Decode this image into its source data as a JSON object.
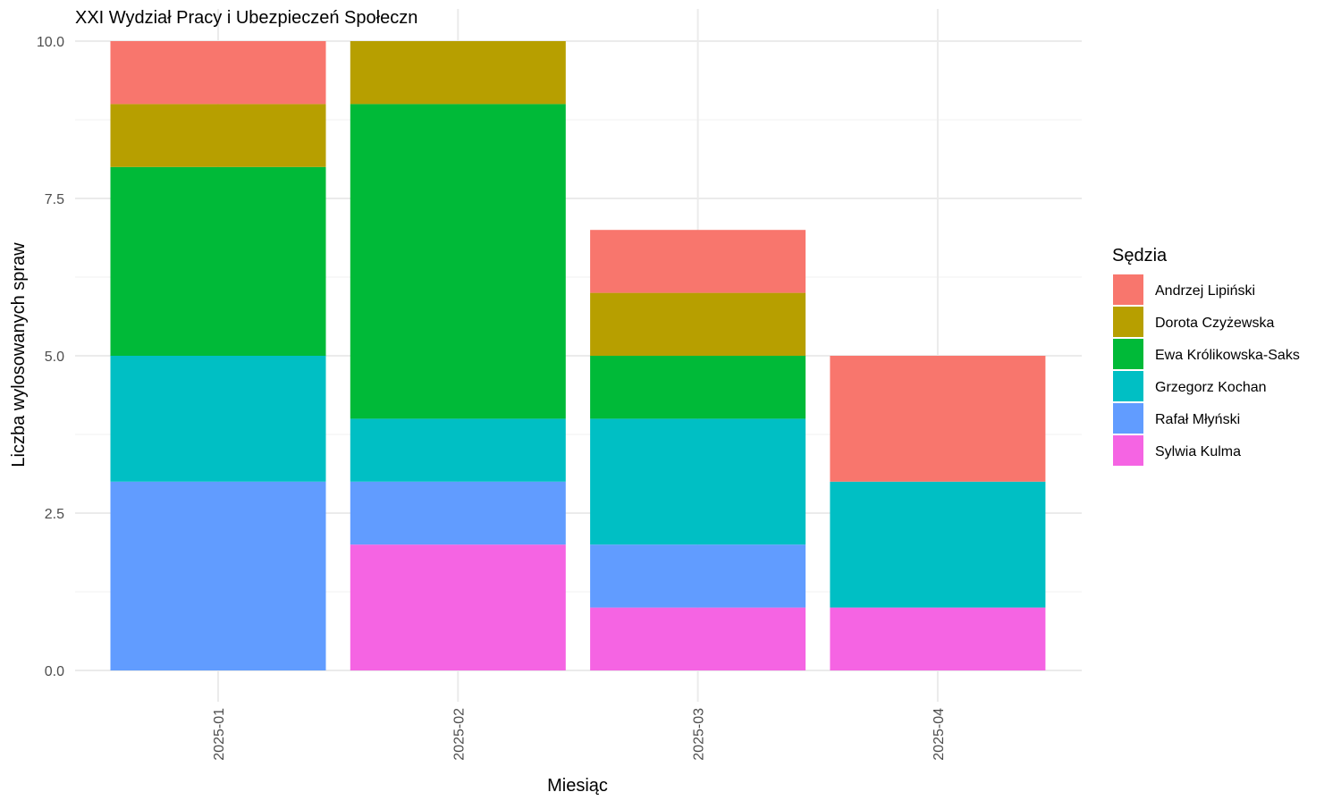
{
  "chart_data": {
    "type": "bar",
    "stacked": true,
    "title": "XXI Wydział Pracy i Ubezpieczeń Społeczn",
    "xlabel": "Miesiąc",
    "ylabel": "Liczba wylosowanych spraw",
    "ylim": [
      0,
      10.5
    ],
    "yticks": [
      "0.0",
      "2.5",
      "5.0",
      "7.5",
      "10.0"
    ],
    "ytick_values": [
      0,
      2.5,
      5,
      7.5,
      10
    ],
    "grid": true,
    "legend_position": "right",
    "legend_title": "Sędzia",
    "categories": [
      "2025-01",
      "2025-02",
      "2025-03",
      "2025-04"
    ],
    "series": [
      {
        "name": "Sylwia Kulma",
        "color": "#F564E3",
        "values": [
          0,
          2,
          1,
          1
        ]
      },
      {
        "name": "Rafał Młyński",
        "color": "#619CFF",
        "values": [
          3,
          1,
          1,
          0
        ]
      },
      {
        "name": "Grzegorz Kochan",
        "color": "#00BFC4",
        "values": [
          2,
          1,
          2,
          2
        ]
      },
      {
        "name": "Ewa Królikowska-Saks",
        "color": "#00BA38",
        "values": [
          3,
          5,
          1,
          0
        ]
      },
      {
        "name": "Dorota Czyżewska",
        "color": "#B79F00",
        "values": [
          1,
          1,
          1,
          0
        ]
      },
      {
        "name": "Andrzej Lipiński",
        "color": "#F8766D",
        "values": [
          1,
          0,
          1,
          2
        ]
      }
    ],
    "legend_order": [
      "Andrzej Lipiński",
      "Dorota Czyżewska",
      "Ewa Królikowska-Saks",
      "Grzegorz Kochan",
      "Rafał Młyński",
      "Sylwia Kulma"
    ]
  }
}
